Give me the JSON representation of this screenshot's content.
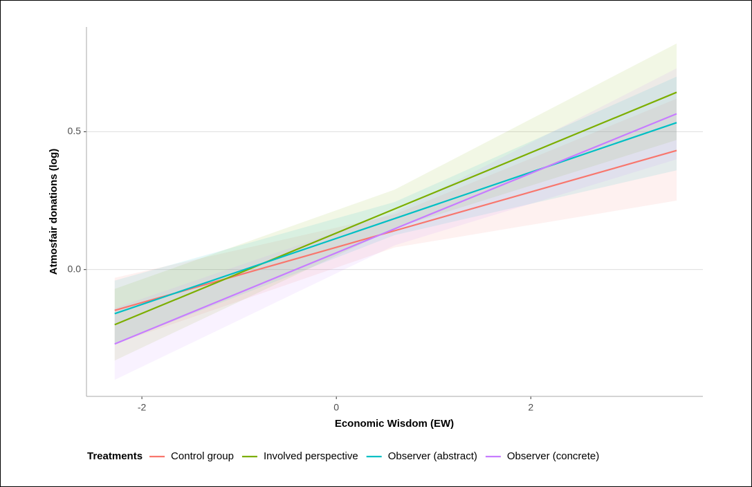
{
  "chart_data": {
    "type": "line",
    "x_label": "Economic Wisdom (EW)",
    "y_label": "Atmosfair donations (log)",
    "legend_title": "Treatments",
    "legend_position": "bottom",
    "x": [
      -2.28,
      0.6,
      3.5
    ],
    "series": [
      {
        "name": "Control group",
        "color": "#F8766D",
        "values": [
          -0.148,
          0.141,
          0.432
        ],
        "lower": [
          -0.27,
          0.08,
          0.25
        ],
        "upper": [
          -0.03,
          0.2,
          0.62
        ]
      },
      {
        "name": "Involved perspective",
        "color": "#7CAE00",
        "values": [
          -0.2,
          0.22,
          0.643
        ],
        "lower": [
          -0.33,
          0.15,
          0.47
        ],
        "upper": [
          -0.07,
          0.29,
          0.82
        ]
      },
      {
        "name": "Observer (abstract)",
        "color": "#00BFC4",
        "values": [
          -0.16,
          0.185,
          0.533
        ],
        "lower": [
          -0.27,
          0.125,
          0.36
        ],
        "upper": [
          -0.04,
          0.245,
          0.7
        ]
      },
      {
        "name": "Observer (concrete)",
        "color": "#C77CFF",
        "values": [
          -0.27,
          0.148,
          0.565
        ],
        "lower": [
          -0.4,
          0.088,
          0.4
        ],
        "upper": [
          -0.14,
          0.208,
          0.73
        ]
      }
    ],
    "xlim": [
      -2.57,
      3.77
    ],
    "ylim": [
      -0.46,
      0.88
    ],
    "xticks": [
      -2,
      0,
      2
    ],
    "yticks": [
      {
        "value": 0,
        "label": "0.0"
      },
      0.5
    ],
    "grid": true
  }
}
